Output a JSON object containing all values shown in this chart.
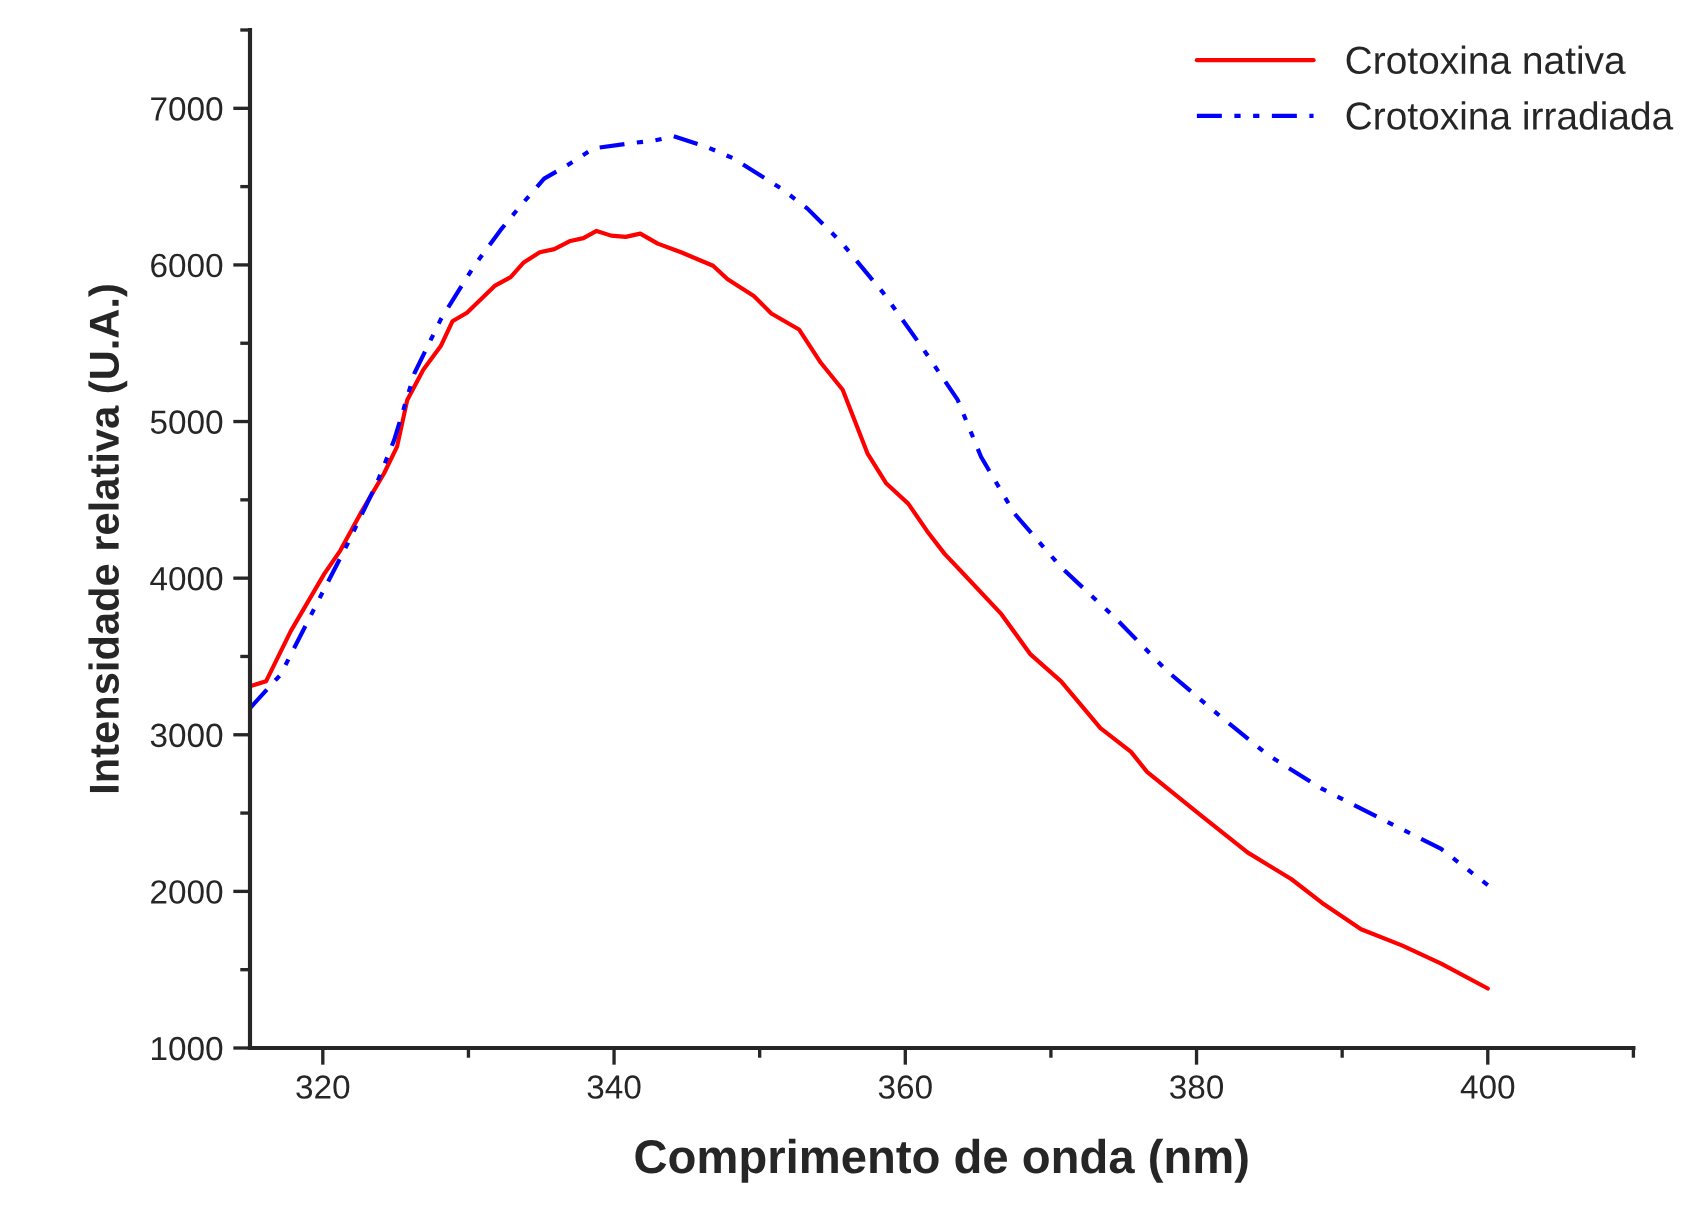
{
  "chart_data": {
    "type": "line",
    "xlabel": "Comprimento de onda (nm)",
    "ylabel": "Intensidade relativa (U.A.)",
    "xlim": [
      315,
      410
    ],
    "ylim": [
      1000,
      7500
    ],
    "xticks": [
      320,
      {
        "value": 330,
        "label": null
      },
      340,
      {
        "value": 350,
        "label": null
      },
      360,
      {
        "value": 370,
        "label": null
      },
      380,
      {
        "value": 390,
        "label": null
      },
      400,
      {
        "value": 410,
        "label": null
      }
    ],
    "yticks": [
      1000,
      {
        "value": 1500,
        "label": null
      },
      2000,
      {
        "value": 2500,
        "label": null
      },
      3000,
      {
        "value": 3500,
        "label": null
      },
      4000,
      {
        "value": 4500,
        "label": null
      },
      5000,
      {
        "value": 5500,
        "label": null
      },
      6000,
      {
        "value": 6500,
        "label": null
      },
      7000,
      {
        "value": 7500,
        "label": null
      }
    ],
    "grid": false,
    "legend": "top right",
    "series": [
      {
        "name": "Crotoxina nativa",
        "color": "#ff0000",
        "line_style": "solid",
        "x": [
          315,
          316.1,
          317.8,
          320.1,
          321.2,
          322.6,
          324.2,
          325.1,
          325.8,
          326.9,
          328.1,
          328.9,
          329.9,
          331.8,
          332.9,
          333.8,
          334.9,
          335.9,
          337.0,
          337.9,
          338.8,
          339.8,
          340.8,
          341.8,
          343.0,
          344.6,
          346.8,
          347.8,
          349.6,
          350.8,
          352.7,
          354.2,
          355.7,
          357.4,
          358.7,
          360.2,
          361.5,
          362.7,
          363.8,
          366.6,
          368.6,
          370.7,
          373.4,
          375.5,
          376.6,
          380.3,
          383.5,
          386.5,
          388.6,
          391.3,
          394.1,
          396.8,
          400
        ],
        "values": [
          3310,
          3341,
          3662,
          4027,
          4176,
          4415,
          4668,
          4840,
          5138,
          5331,
          5482,
          5640,
          5695,
          5866,
          5922,
          6016,
          6081,
          6101,
          6153,
          6171,
          6217,
          6187,
          6179,
          6200,
          6136,
          6081,
          5995,
          5909,
          5802,
          5690,
          5588,
          5375,
          5203,
          4797,
          4604,
          4476,
          4300,
          4155,
          4047,
          3770,
          3513,
          3341,
          3042,
          2891,
          2763,
          2486,
          2249,
          2079,
          1928,
          1758,
          1655,
          1539,
          1380
        ]
      },
      {
        "name": "Crotoxina irradiada",
        "color": "#0000ff",
        "line_style": "dashdotdot",
        "x": [
          315,
          317.1,
          319.8,
          321.7,
          323.7,
          324.9,
          326.3,
          328.1,
          330.4,
          332.2,
          333.6,
          335.2,
          336.8,
          338.6,
          340.9,
          342.8,
          344.1,
          346.4,
          348.2,
          351.5,
          353.3,
          355.6,
          358.5,
          361.1,
          363.6,
          365.2,
          367.5,
          370.7,
          374.4,
          378.0,
          381.5,
          384.9,
          388.6,
          391.3,
          396.8,
          400
        ],
        "values": [
          3170,
          3384,
          3876,
          4219,
          4604,
          4882,
          5310,
          5652,
          5995,
          6222,
          6380,
          6551,
          6637,
          6744,
          6774,
          6795,
          6821,
          6752,
          6680,
          6487,
          6358,
          6145,
          5820,
          5481,
          5138,
          4775,
          4412,
          4069,
          3748,
          3405,
          3128,
          2871,
          2656,
          2528,
          2271,
          2040
        ]
      }
    ]
  }
}
